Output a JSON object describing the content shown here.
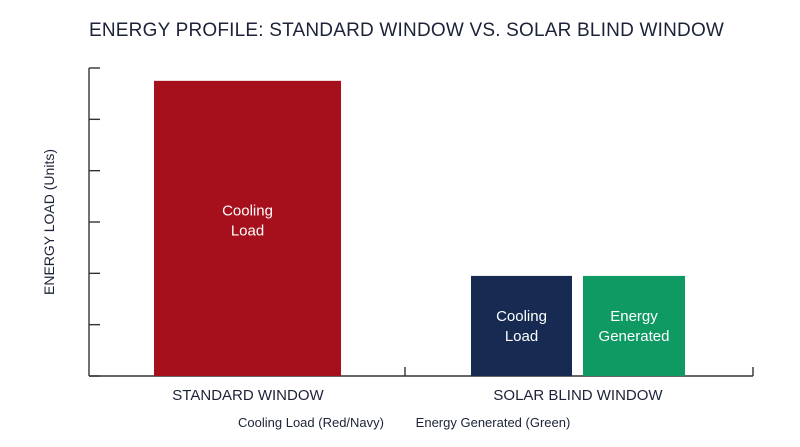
{
  "chart_data": {
    "type": "bar",
    "title": "ENERGY PROFILE: STANDARD WINDOW VS. SOLAR BLIND WINDOW",
    "ylabel": "ENERGY LOAD (Units)",
    "xlabel": "",
    "ylim": [
      0,
      6
    ],
    "y_ticks": [
      0,
      1,
      2,
      3,
      4,
      5,
      6
    ],
    "y_tick_labels_shown": false,
    "grid": false,
    "categories": [
      "STANDARD WINDOW",
      "SOLAR BLIND WINDOW"
    ],
    "bars": [
      {
        "category": "STANDARD WINDOW",
        "label_lines": [
          "Cooling",
          "Load"
        ],
        "value": 5.75,
        "color": "#a5101c"
      },
      {
        "category": "SOLAR BLIND WINDOW",
        "label_lines": [
          "Cooling",
          "Load"
        ],
        "value": 1.95,
        "color": "#172a52"
      },
      {
        "category": "SOLAR BLIND WINDOW",
        "label_lines": [
          "Energy",
          "Generated"
        ],
        "value": 1.95,
        "color": "#0f9a64"
      }
    ],
    "legend": {
      "placement": "bottom",
      "entries": [
        "Cooling Load (Red/Navy)",
        "Energy Generated (Green)"
      ]
    }
  }
}
